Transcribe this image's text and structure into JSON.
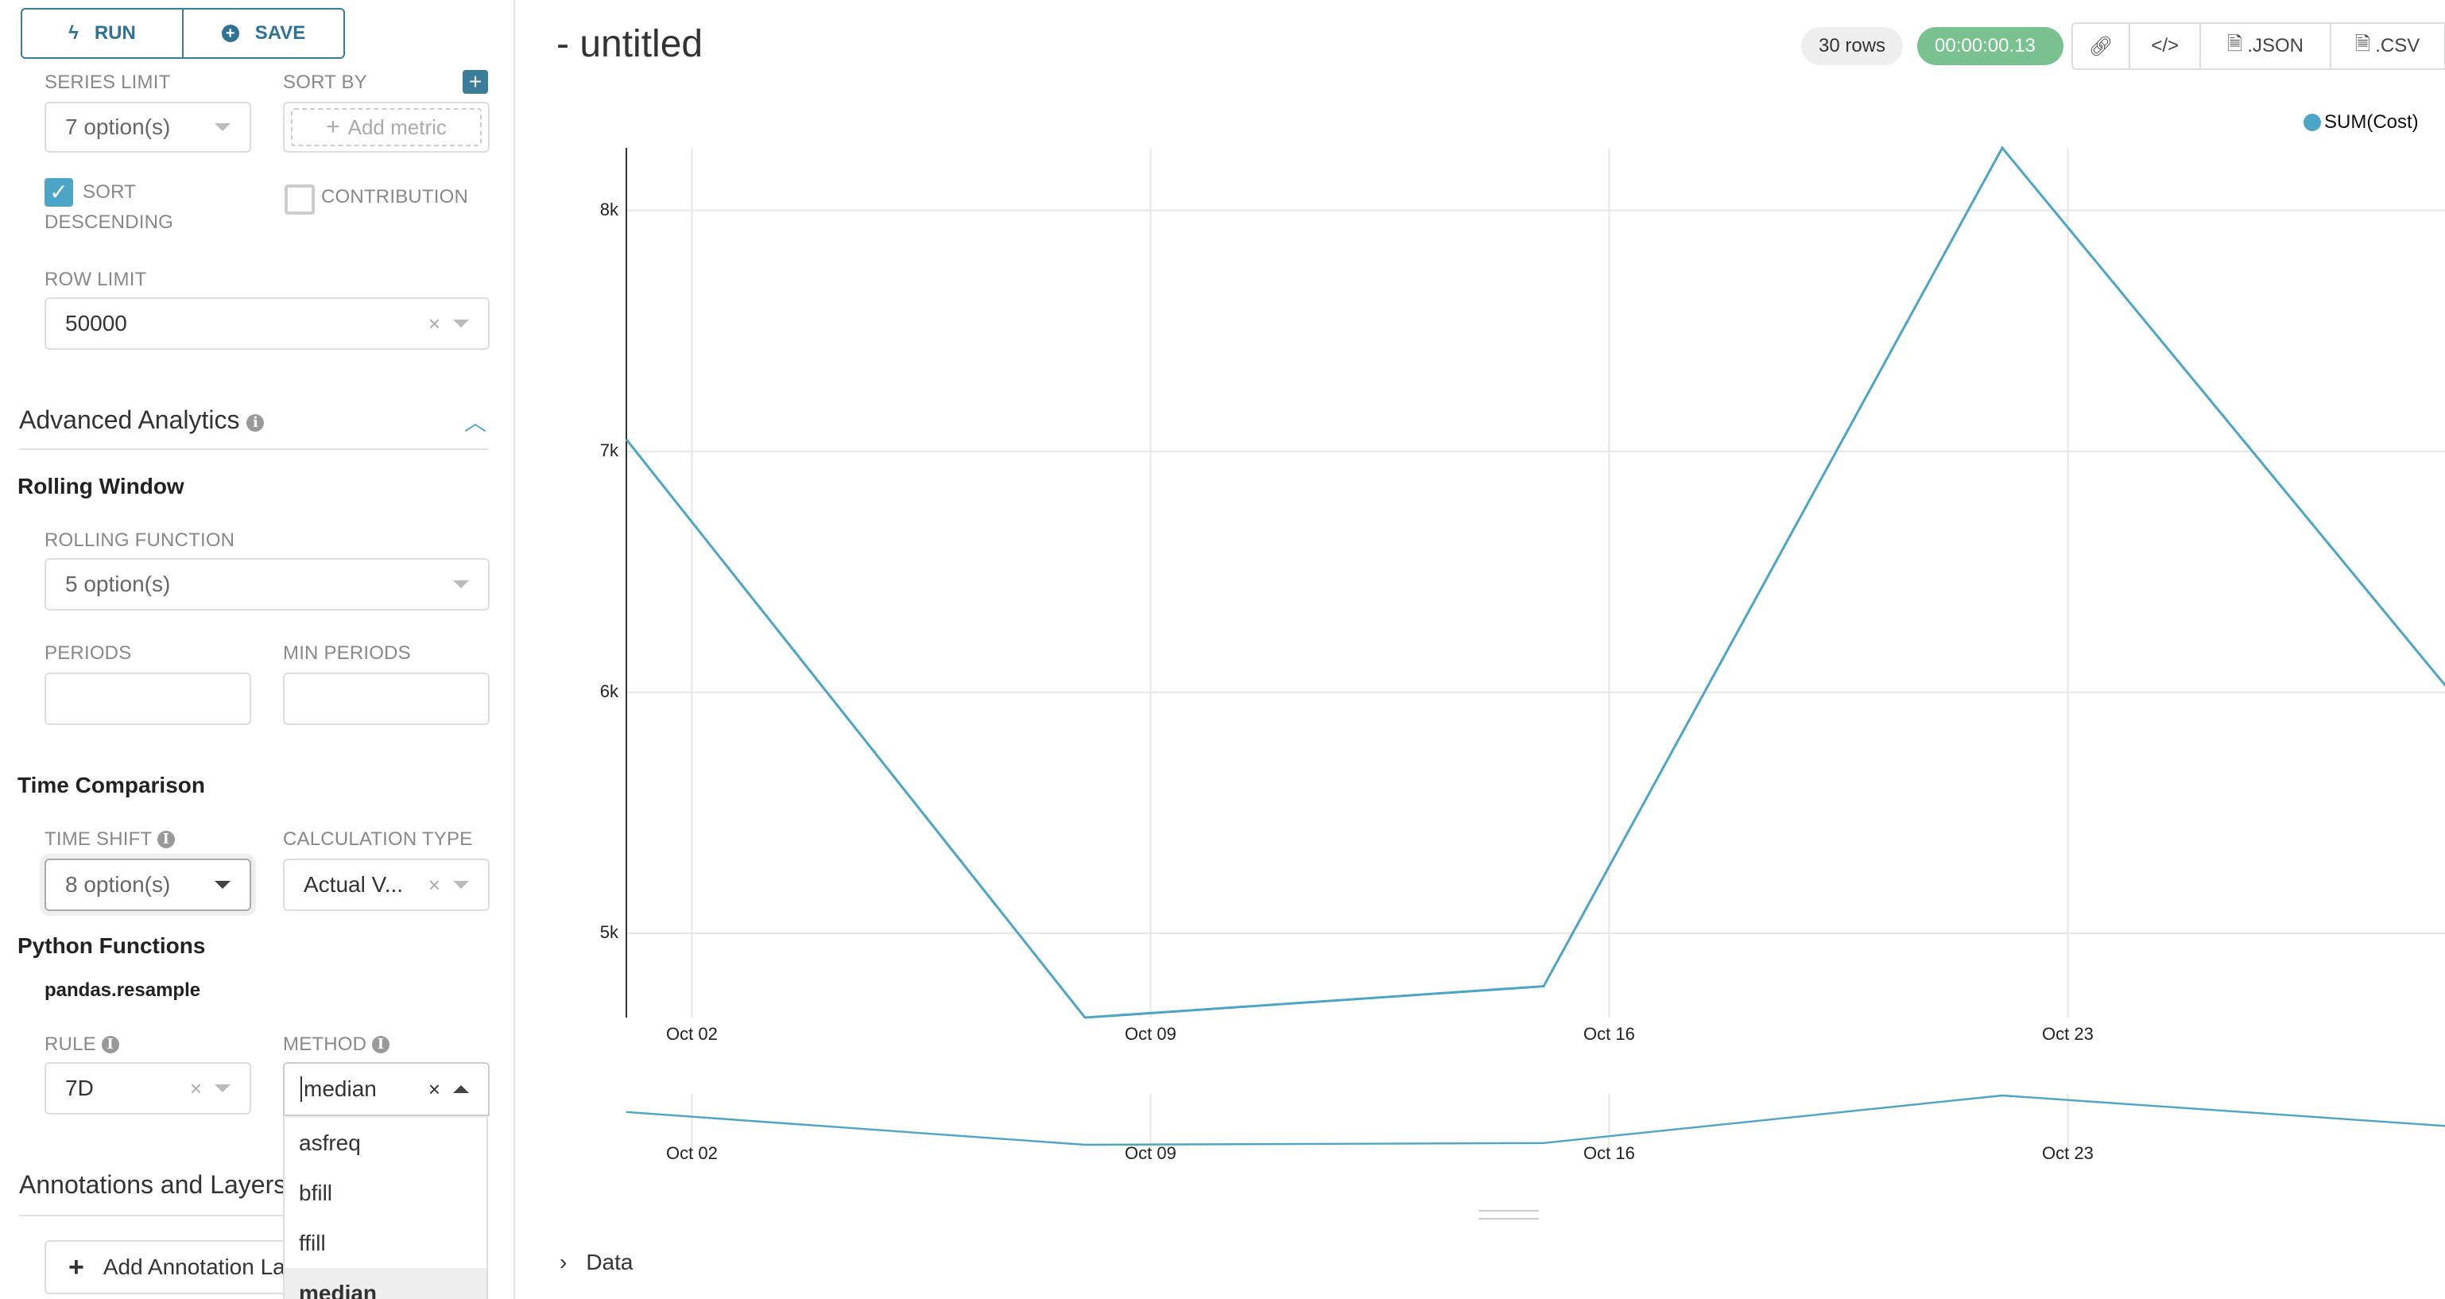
{
  "toolbar": {
    "run_label": "RUN",
    "save_label": "SAVE"
  },
  "sidebar": {
    "series_limit": {
      "label": "SERIES LIMIT",
      "value": "7 option(s)"
    },
    "sort_by": {
      "label": "SORT BY",
      "placeholder": "Add metric"
    },
    "sort_descending": {
      "label_1": "SORT",
      "label_2": "DESCENDING",
      "checked": true
    },
    "contribution": {
      "label": "CONTRIBUTION",
      "checked": false
    },
    "row_limit": {
      "label": "ROW LIMIT",
      "value": "50000"
    },
    "advanced_analytics": {
      "title": "Advanced Analytics"
    },
    "rolling_window": {
      "title": "Rolling Window",
      "rolling_function": {
        "label": "ROLLING FUNCTION",
        "value": "5 option(s)"
      },
      "periods": {
        "label": "PERIODS",
        "value": ""
      },
      "min_periods": {
        "label": "MIN PERIODS",
        "value": ""
      }
    },
    "time_comparison": {
      "title": "Time Comparison",
      "time_shift": {
        "label": "TIME SHIFT",
        "value": "8 option(s)"
      },
      "calculation_type": {
        "label": "CALCULATION TYPE",
        "value": "Actual V..."
      }
    },
    "python_functions": {
      "title": "Python Functions",
      "subtitle": "pandas.resample",
      "rule": {
        "label": "RULE",
        "value": "7D"
      },
      "method": {
        "label": "METHOD",
        "value": "median",
        "options": [
          "asfreq",
          "bfill",
          "ffill",
          "median"
        ],
        "selected": "median"
      }
    },
    "annotations": {
      "title": "Annotations and Layers",
      "add_button": "Add Annotation Layer"
    }
  },
  "header": {
    "title": "- untitled",
    "rows_badge": "30 rows",
    "timer_badge": "00:00:00.13",
    "json_label": ".JSON",
    "csv_label": ".CSV"
  },
  "colors": {
    "accent": "#2e7393",
    "series": "#4ca5c7",
    "timer": "#79c28f"
  },
  "chart_data": {
    "type": "line",
    "legend": [
      "SUM(Cost)"
    ],
    "legend_position": "top-right",
    "x": [
      "2017-10-01",
      "2017-10-08",
      "2017-10-15",
      "2017-10-22",
      "2017-10-29"
    ],
    "series": [
      {
        "name": "SUM(Cost)",
        "values": [
          7050,
          4650,
          4780,
          8260,
          5950
        ]
      }
    ],
    "yticks": [
      "5k",
      "6k",
      "7k",
      "8k"
    ],
    "ytick_values": [
      5000,
      6000,
      7000,
      8000
    ],
    "xticks": [
      "Oct 02",
      "Oct 09",
      "Oct 16",
      "Oct 23"
    ],
    "xtick_values": [
      "2017-10-02",
      "2017-10-09",
      "2017-10-16",
      "2017-10-23"
    ],
    "ylim": [
      4650,
      8260
    ],
    "grid": true
  },
  "data_panel": {
    "label": "Data"
  }
}
